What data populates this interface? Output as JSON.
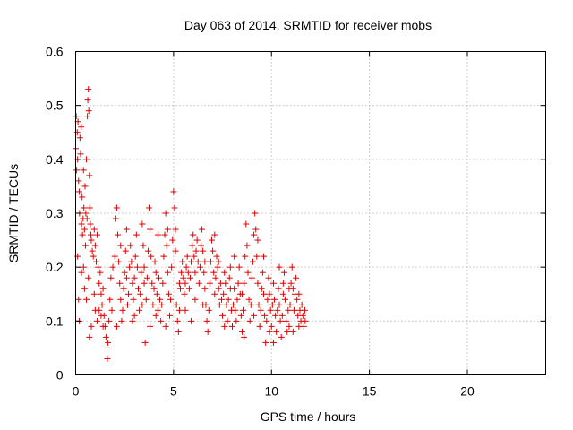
{
  "chart_data": {
    "type": "scatter",
    "title": "Day 063 of 2014, SRMTID for receiver mobs",
    "xlabel": "GPS time / hours",
    "ylabel": "SRMTID / TECUs",
    "xlim": [
      0,
      24
    ],
    "ylim": [
      0,
      0.6
    ],
    "xticks": [
      0,
      5,
      10,
      15,
      20
    ],
    "yticks": [
      0,
      0.1,
      0.2,
      0.3,
      0.4,
      0.5,
      0.6
    ],
    "xtick_labels": [
      "0",
      "5",
      "10",
      "15",
      "20"
    ],
    "ytick_labels": [
      "0",
      "0.1",
      "0.2",
      "0.3",
      "0.4",
      "0.5",
      "0.6"
    ],
    "grid": true,
    "marker": "+",
    "color": "#e00000",
    "series": [
      {
        "name": "SRMTID",
        "points": [
          [
            0.0,
            0.42
          ],
          [
            0.03,
            0.48
          ],
          [
            0.05,
            0.38
          ],
          [
            0.08,
            0.45
          ],
          [
            0.1,
            0.4
          ],
          [
            0.12,
            0.47
          ],
          [
            0.15,
            0.36
          ],
          [
            0.18,
            0.34
          ],
          [
            0.2,
            0.3
          ],
          [
            0.22,
            0.44
          ],
          [
            0.25,
            0.41
          ],
          [
            0.28,
            0.46
          ],
          [
            0.3,
            0.28
          ],
          [
            0.33,
            0.33
          ],
          [
            0.35,
            0.26
          ],
          [
            0.38,
            0.29
          ],
          [
            0.4,
            0.38
          ],
          [
            0.42,
            0.31
          ],
          [
            0.45,
            0.27
          ],
          [
            0.48,
            0.35
          ],
          [
            0.5,
            0.24
          ],
          [
            0.52,
            0.3
          ],
          [
            0.55,
            0.4
          ],
          [
            0.58,
            0.29
          ],
          [
            0.6,
            0.48
          ],
          [
            0.62,
            0.51
          ],
          [
            0.65,
            0.53
          ],
          [
            0.67,
            0.49
          ],
          [
            0.7,
            0.37
          ],
          [
            0.72,
            0.31
          ],
          [
            0.75,
            0.28
          ],
          [
            0.78,
            0.26
          ],
          [
            0.8,
            0.25
          ],
          [
            0.85,
            0.23
          ],
          [
            0.9,
            0.22
          ],
          [
            0.95,
            0.27
          ],
          [
            1.0,
            0.24
          ],
          [
            1.05,
            0.21
          ],
          [
            1.1,
            0.26
          ],
          [
            1.15,
            0.2
          ],
          [
            1.2,
            0.17
          ],
          [
            1.25,
            0.19
          ],
          [
            1.3,
            0.15
          ],
          [
            1.35,
            0.13
          ],
          [
            1.4,
            0.16
          ],
          [
            1.45,
            0.11
          ],
          [
            1.5,
            0.09
          ],
          [
            1.55,
            0.07
          ],
          [
            1.6,
            0.05
          ],
          [
            1.62,
            0.03
          ],
          [
            1.65,
            0.06
          ],
          [
            1.7,
            0.1
          ],
          [
            1.75,
            0.14
          ],
          [
            1.8,
            0.18
          ],
          [
            1.85,
            0.12
          ],
          [
            1.9,
            0.2
          ],
          [
            0.1,
            0.22
          ],
          [
            0.15,
            0.14
          ],
          [
            0.18,
            0.1
          ],
          [
            0.3,
            0.19
          ],
          [
            0.4,
            0.2
          ],
          [
            0.45,
            0.16
          ],
          [
            0.55,
            0.14
          ],
          [
            0.65,
            0.18
          ],
          [
            0.7,
            0.07
          ],
          [
            0.8,
            0.09
          ],
          [
            0.95,
            0.15
          ],
          [
            1.0,
            0.12
          ],
          [
            1.1,
            0.1
          ],
          [
            1.2,
            0.12
          ],
          [
            1.3,
            0.11
          ],
          [
            1.4,
            0.09
          ],
          [
            2.0,
            0.22
          ],
          [
            2.05,
            0.29
          ],
          [
            2.1,
            0.31
          ],
          [
            2.15,
            0.26
          ],
          [
            2.2,
            0.21
          ],
          [
            2.25,
            0.17
          ],
          [
            2.3,
            0.14
          ],
          [
            2.35,
            0.1
          ],
          [
            2.4,
            0.12
          ],
          [
            2.45,
            0.16
          ],
          [
            2.5,
            0.19
          ],
          [
            2.55,
            0.23
          ],
          [
            2.6,
            0.18
          ],
          [
            2.65,
            0.13
          ],
          [
            2.7,
            0.15
          ],
          [
            2.75,
            0.2
          ],
          [
            2.8,
            0.24
          ],
          [
            2.85,
            0.21
          ],
          [
            2.9,
            0.17
          ],
          [
            2.95,
            0.14
          ],
          [
            3.0,
            0.18
          ],
          [
            3.05,
            0.22
          ],
          [
            3.1,
            0.26
          ],
          [
            3.15,
            0.2
          ],
          [
            3.2,
            0.16
          ],
          [
            3.25,
            0.12
          ],
          [
            3.3,
            0.15
          ],
          [
            3.35,
            0.19
          ],
          [
            3.4,
            0.28
          ],
          [
            3.45,
            0.24
          ],
          [
            3.5,
            0.2
          ],
          [
            3.55,
            0.06
          ],
          [
            3.6,
            0.14
          ],
          [
            3.65,
            0.18
          ],
          [
            3.7,
            0.23
          ],
          [
            3.75,
            0.31
          ],
          [
            3.8,
            0.27
          ],
          [
            3.85,
            0.22
          ],
          [
            3.9,
            0.17
          ],
          [
            3.95,
            0.13
          ],
          [
            4.0,
            0.16
          ],
          [
            4.05,
            0.21
          ],
          [
            4.1,
            0.19
          ],
          [
            4.15,
            0.15
          ],
          [
            4.2,
            0.12
          ],
          [
            4.25,
            0.18
          ],
          [
            4.3,
            0.14
          ],
          [
            4.35,
            0.1
          ],
          [
            4.4,
            0.13
          ],
          [
            4.45,
            0.17
          ],
          [
            4.5,
            0.22
          ],
          [
            4.55,
            0.26
          ],
          [
            4.6,
            0.3
          ],
          [
            4.65,
            0.24
          ],
          [
            4.7,
            0.19
          ],
          [
            4.75,
            0.15
          ],
          [
            4.8,
            0.11
          ],
          [
            4.85,
            0.14
          ],
          [
            4.9,
            0.2
          ],
          [
            4.95,
            0.25
          ],
          [
            5.0,
            0.34
          ],
          [
            5.05,
            0.31
          ],
          [
            5.1,
            0.27
          ],
          [
            5.15,
            0.13
          ],
          [
            5.2,
            0.1
          ],
          [
            5.25,
            0.08
          ],
          [
            5.3,
            0.12
          ],
          [
            5.35,
            0.16
          ],
          [
            5.4,
            0.19
          ],
          [
            5.45,
            0.21
          ],
          [
            5.5,
            0.18
          ],
          [
            5.55,
            0.15
          ],
          [
            5.6,
            0.17
          ],
          [
            5.65,
            0.2
          ],
          [
            5.7,
            0.22
          ],
          [
            5.75,
            0.19
          ],
          [
            5.8,
            0.16
          ],
          [
            5.85,
            0.18
          ],
          [
            5.9,
            0.21
          ],
          [
            5.95,
            0.24
          ],
          [
            6.0,
            0.26
          ],
          [
            6.05,
            0.22
          ],
          [
            6.1,
            0.19
          ],
          [
            6.15,
            0.23
          ],
          [
            6.2,
            0.25
          ],
          [
            6.25,
            0.21
          ],
          [
            6.3,
            0.17
          ],
          [
            6.35,
            0.2
          ],
          [
            6.4,
            0.24
          ],
          [
            6.45,
            0.27
          ],
          [
            6.5,
            0.23
          ],
          [
            6.55,
            0.19
          ],
          [
            6.6,
            0.16
          ],
          [
            6.65,
            0.13
          ],
          [
            6.7,
            0.1
          ],
          [
            6.75,
            0.08
          ],
          [
            6.8,
            0.12
          ],
          [
            6.85,
            0.17
          ],
          [
            6.9,
            0.21
          ],
          [
            6.95,
            0.25
          ],
          [
            7.0,
            0.23
          ],
          [
            7.05,
            0.19
          ],
          [
            7.1,
            0.15
          ],
          [
            7.15,
            0.18
          ],
          [
            7.2,
            0.22
          ],
          [
            7.25,
            0.2
          ],
          [
            7.3,
            0.16
          ],
          [
            7.35,
            0.13
          ],
          [
            7.4,
            0.17
          ],
          [
            7.45,
            0.14
          ],
          [
            7.5,
            0.11
          ],
          [
            7.55,
            0.15
          ],
          [
            7.6,
            0.19
          ],
          [
            7.65,
            0.17
          ],
          [
            7.7,
            0.13
          ],
          [
            7.75,
            0.1
          ],
          [
            7.8,
            0.14
          ],
          [
            7.85,
            0.18
          ],
          [
            7.9,
            0.16
          ],
          [
            7.95,
            0.12
          ],
          [
            8.0,
            0.09
          ],
          [
            8.05,
            0.13
          ],
          [
            8.1,
            0.16
          ],
          [
            8.15,
            0.12
          ],
          [
            8.2,
            0.1
          ],
          [
            8.25,
            0.14
          ],
          [
            8.3,
            0.17
          ],
          [
            8.35,
            0.2
          ],
          [
            8.4,
            0.15
          ],
          [
            8.45,
            0.11
          ],
          [
            8.5,
            0.08
          ],
          [
            8.55,
            0.12
          ],
          [
            8.6,
            0.17
          ],
          [
            8.65,
            0.22
          ],
          [
            8.7,
            0.28
          ],
          [
            8.75,
            0.24
          ],
          [
            8.8,
            0.19
          ],
          [
            8.85,
            0.14
          ],
          [
            8.9,
            0.1
          ],
          [
            8.95,
            0.13
          ],
          [
            9.0,
            0.18
          ],
          [
            9.05,
            0.21
          ],
          [
            9.1,
            0.26
          ],
          [
            9.15,
            0.3
          ],
          [
            9.2,
            0.27
          ],
          [
            9.25,
            0.22
          ],
          [
            9.3,
            0.17
          ],
          [
            9.35,
            0.13
          ],
          [
            9.4,
            0.09
          ],
          [
            9.45,
            0.12
          ],
          [
            9.5,
            0.16
          ],
          [
            9.55,
            0.19
          ],
          [
            9.6,
            0.15
          ],
          [
            9.65,
            0.11
          ],
          [
            9.7,
            0.06
          ],
          [
            9.75,
            0.1
          ],
          [
            9.8,
            0.14
          ],
          [
            9.85,
            0.18
          ],
          [
            9.9,
            0.15
          ],
          [
            9.95,
            0.12
          ],
          [
            10.0,
            0.09
          ],
          [
            10.05,
            0.13
          ],
          [
            10.1,
            0.17
          ],
          [
            10.15,
            0.14
          ],
          [
            10.2,
            0.11
          ],
          [
            10.25,
            0.08
          ],
          [
            10.3,
            0.12
          ],
          [
            10.35,
            0.16
          ],
          [
            10.4,
            0.13
          ],
          [
            10.45,
            0.1
          ],
          [
            10.5,
            0.07
          ],
          [
            10.55,
            0.11
          ],
          [
            10.6,
            0.15
          ],
          [
            10.65,
            0.19
          ],
          [
            10.7,
            0.14
          ],
          [
            10.75,
            0.1
          ],
          [
            10.8,
            0.08
          ],
          [
            10.85,
            0.12
          ],
          [
            10.9,
            0.09
          ],
          [
            10.95,
            0.13
          ],
          [
            11.0,
            0.17
          ],
          [
            11.05,
            0.2
          ],
          [
            11.1,
            0.16
          ],
          [
            11.15,
            0.12
          ],
          [
            11.2,
            0.15
          ],
          [
            11.25,
            0.18
          ],
          [
            11.3,
            0.14
          ],
          [
            11.35,
            0.11
          ],
          [
            11.4,
            0.09
          ],
          [
            11.45,
            0.12
          ],
          [
            11.5,
            0.1
          ],
          [
            11.55,
            0.13
          ],
          [
            11.6,
            0.11
          ],
          [
            11.65,
            0.09
          ],
          [
            11.7,
            0.12
          ],
          [
            11.72,
            0.1
          ],
          [
            2.1,
            0.09
          ],
          [
            2.6,
            0.27
          ],
          [
            3.0,
            0.11
          ],
          [
            3.4,
            0.13
          ],
          [
            3.8,
            0.09
          ],
          [
            4.2,
            0.26
          ],
          [
            4.6,
            0.09
          ],
          [
            5.1,
            0.23
          ],
          [
            5.6,
            0.12
          ],
          [
            6.1,
            0.14
          ],
          [
            6.6,
            0.21
          ],
          [
            7.1,
            0.26
          ],
          [
            7.6,
            0.09
          ],
          [
            8.1,
            0.22
          ],
          [
            8.6,
            0.07
          ],
          [
            9.1,
            0.11
          ],
          [
            9.6,
            0.22
          ],
          [
            10.1,
            0.06
          ],
          [
            10.6,
            0.17
          ],
          [
            11.1,
            0.08
          ],
          [
            2.3,
            0.24
          ],
          [
            2.9,
            0.1
          ],
          [
            3.5,
            0.17
          ],
          [
            4.1,
            0.11
          ],
          [
            4.7,
            0.27
          ],
          [
            5.3,
            0.17
          ],
          [
            5.9,
            0.1
          ],
          [
            6.5,
            0.13
          ],
          [
            7.3,
            0.21
          ],
          [
            7.9,
            0.2
          ],
          [
            8.5,
            0.15
          ],
          [
            9.3,
            0.25
          ],
          [
            9.9,
            0.08
          ],
          [
            10.4,
            0.2
          ],
          [
            10.9,
            0.16
          ],
          [
            11.4,
            0.15
          ]
        ]
      }
    ]
  }
}
